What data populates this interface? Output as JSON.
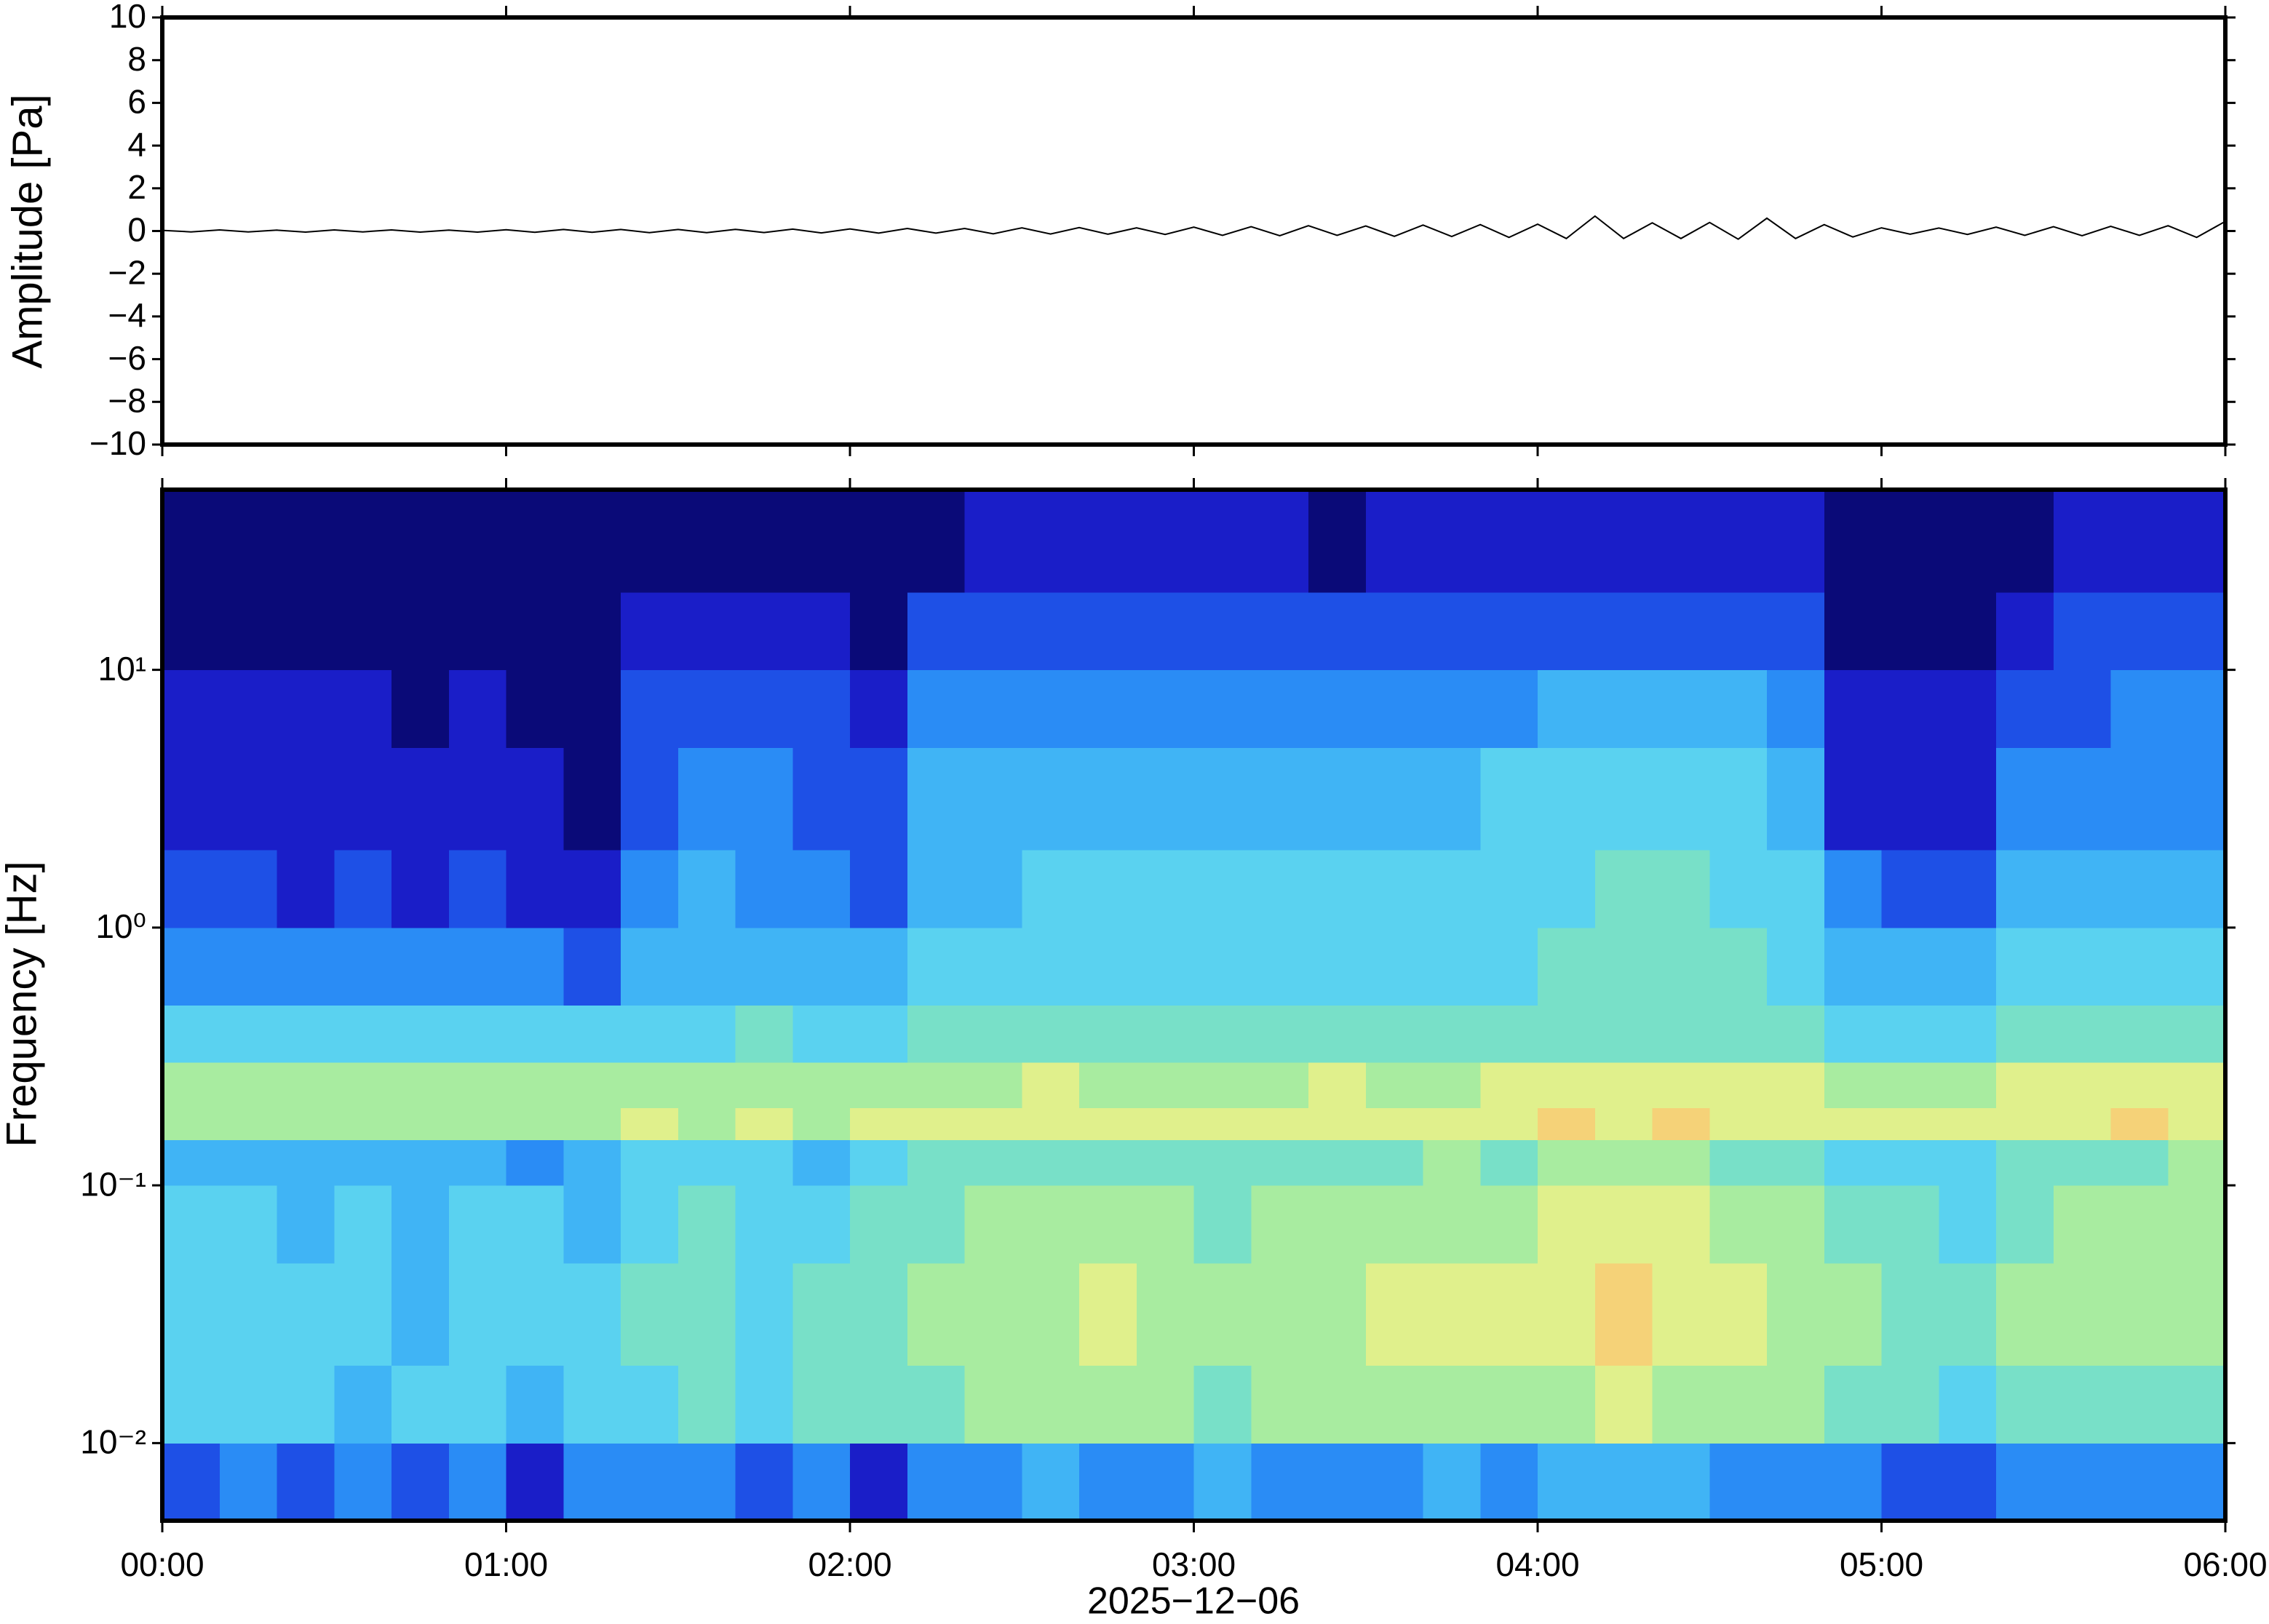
{
  "chart_data": [
    {
      "type": "line",
      "ylabel": "Amplitude [Pa]",
      "color": "#000000",
      "x": [
        0,
        5,
        10,
        15,
        20,
        25,
        30,
        35,
        40,
        45,
        50,
        55,
        60,
        65,
        70,
        75,
        80,
        85,
        90,
        95,
        100,
        105,
        110,
        115,
        120,
        125,
        130,
        135,
        140,
        145,
        150,
        155,
        160,
        165,
        170,
        175,
        180,
        185,
        190,
        195,
        200,
        205,
        210,
        215,
        220,
        225,
        230,
        235,
        240,
        245,
        250,
        255,
        260,
        265,
        270,
        275,
        280,
        285,
        290,
        295,
        300,
        305,
        310,
        315,
        320,
        325,
        330,
        335,
        340,
        345,
        350,
        355,
        360
      ],
      "values": [
        0.03,
        -0.04,
        0.05,
        -0.04,
        0.04,
        -0.05,
        0.05,
        -0.04,
        0.05,
        -0.05,
        0.04,
        -0.05,
        0.06,
        -0.06,
        0.07,
        -0.06,
        0.07,
        -0.08,
        0.07,
        -0.08,
        0.08,
        -0.07,
        0.09,
        -0.09,
        0.1,
        -0.1,
        0.12,
        -0.1,
        0.12,
        -0.13,
        0.15,
        -0.14,
        0.16,
        -0.15,
        0.15,
        -0.16,
        0.18,
        -0.2,
        0.2,
        -0.22,
        0.25,
        -0.2,
        0.24,
        -0.25,
        0.28,
        -0.26,
        0.3,
        -0.3,
        0.32,
        -0.35,
        0.7,
        -0.35,
        0.38,
        -0.35,
        0.4,
        -0.38,
        0.6,
        -0.35,
        0.3,
        -0.28,
        0.15,
        -0.15,
        0.14,
        -0.16,
        0.18,
        -0.2,
        0.2,
        -0.22,
        0.22,
        -0.2,
        0.25,
        -0.3,
        0.45
      ],
      "xlim": [
        0,
        360
      ],
      "xticks": [
        0,
        60,
        120,
        180,
        240,
        300,
        360
      ],
      "ylim": [
        -10,
        10
      ],
      "yticks": [
        {
          "value": -10,
          "label": "−10"
        },
        {
          "value": -8,
          "label": "−8"
        },
        {
          "value": -6,
          "label": "−6"
        },
        {
          "value": -4,
          "label": "−4"
        },
        {
          "value": -2,
          "label": "−2"
        },
        0,
        2,
        4,
        6,
        8,
        10
      ]
    },
    {
      "type": "heatmap",
      "ylabel": "Frequency [Hz]",
      "xlabel": "2025−12−06",
      "yscale": "log",
      "xlim": [
        0,
        360
      ],
      "xticks": [
        {
          "value": 0,
          "label": "00:00"
        },
        {
          "value": 60,
          "label": "01:00"
        },
        {
          "value": 120,
          "label": "02:00"
        },
        {
          "value": 180,
          "label": "03:00"
        },
        {
          "value": 240,
          "label": "04:00"
        },
        {
          "value": 300,
          "label": "05:00"
        },
        {
          "value": 360,
          "label": "06:00"
        }
      ],
      "ylim": [
        0.005,
        50
      ],
      "yticks": [
        {
          "value": 0.01,
          "label": "10⁻²"
        },
        {
          "value": 0.1,
          "label": "10⁻¹"
        },
        {
          "value": 1,
          "label": "10⁰"
        },
        {
          "value": 10,
          "label": "10¹"
        }
      ],
      "x_edges": [
        0,
        10,
        20,
        30,
        40,
        50,
        60,
        70,
        80,
        90,
        100,
        110,
        120,
        130,
        140,
        150,
        160,
        170,
        180,
        190,
        200,
        210,
        220,
        230,
        240,
        250,
        260,
        270,
        280,
        290,
        300,
        310,
        320,
        330,
        340,
        350,
        360
      ],
      "y_edges": [
        0.005,
        0.01,
        0.02,
        0.05,
        0.1,
        0.15,
        0.2,
        0.3,
        0.5,
        1,
        2,
        5,
        10,
        20,
        50
      ],
      "zlim": [
        0,
        10
      ],
      "colormap": [
        "#0a0a78",
        "#1a1ec8",
        "#1e50e6",
        "#2a8cf5",
        "#40b4f5",
        "#5ad2f0",
        "#78e0c8",
        "#a8eca0",
        "#e0f08c",
        "#f5d278",
        "#f5a050"
      ],
      "z": [
        [
          2,
          3,
          2,
          3,
          2,
          3,
          1,
          3,
          3,
          3,
          2,
          3,
          1,
          3,
          3,
          4,
          3,
          3,
          4,
          3,
          3,
          3,
          4,
          3,
          4,
          4,
          4,
          3,
          3,
          3,
          2,
          2,
          3,
          3,
          3,
          3
        ],
        [
          5,
          5,
          5,
          4,
          5,
          5,
          4,
          5,
          5,
          6,
          5,
          6,
          6,
          6,
          7,
          7,
          7,
          7,
          6,
          7,
          7,
          7,
          7,
          7,
          7,
          8,
          7,
          7,
          7,
          6,
          6,
          5,
          6,
          6,
          6,
          6
        ],
        [
          5,
          5,
          5,
          5,
          4,
          5,
          5,
          5,
          6,
          6,
          5,
          6,
          6,
          7,
          7,
          7,
          8,
          7,
          7,
          7,
          7,
          8,
          8,
          8,
          8,
          9,
          8,
          8,
          7,
          7,
          6,
          6,
          7,
          7,
          7,
          7
        ],
        [
          5,
          5,
          4,
          5,
          4,
          5,
          5,
          4,
          5,
          6,
          5,
          5,
          6,
          6,
          7,
          7,
          7,
          7,
          6,
          7,
          7,
          7,
          7,
          7,
          8,
          8,
          8,
          7,
          7,
          6,
          6,
          5,
          6,
          7,
          7,
          7
        ],
        [
          4,
          4,
          4,
          4,
          4,
          4,
          3,
          4,
          5,
          5,
          5,
          4,
          5,
          6,
          6,
          6,
          6,
          6,
          6,
          6,
          6,
          6,
          7,
          6,
          7,
          7,
          7,
          6,
          6,
          5,
          5,
          5,
          6,
          6,
          6,
          7
        ],
        [
          7,
          7,
          7,
          7,
          7,
          7,
          7,
          7,
          8,
          7,
          8,
          7,
          8,
          8,
          8,
          8,
          8,
          8,
          8,
          8,
          8,
          8,
          8,
          8,
          9,
          8,
          9,
          8,
          8,
          8,
          8,
          8,
          8,
          8,
          9,
          8
        ],
        [
          7,
          7,
          7,
          7,
          7,
          7,
          7,
          7,
          7,
          7,
          7,
          7,
          7,
          7,
          7,
          8,
          7,
          7,
          7,
          7,
          8,
          7,
          7,
          8,
          8,
          8,
          8,
          8,
          8,
          7,
          7,
          7,
          8,
          8,
          8,
          8
        ],
        [
          5,
          5,
          5,
          5,
          5,
          5,
          5,
          5,
          5,
          5,
          6,
          5,
          5,
          6,
          6,
          6,
          6,
          6,
          6,
          6,
          6,
          6,
          6,
          6,
          6,
          6,
          6,
          6,
          6,
          5,
          5,
          5,
          6,
          6,
          6,
          6
        ],
        [
          3,
          3,
          3,
          3,
          3,
          3,
          3,
          2,
          4,
          4,
          4,
          4,
          4,
          5,
          5,
          5,
          5,
          5,
          5,
          5,
          5,
          5,
          5,
          5,
          6,
          6,
          6,
          6,
          5,
          4,
          4,
          4,
          5,
          5,
          5,
          5
        ],
        [
          2,
          2,
          1,
          2,
          1,
          2,
          1,
          1,
          3,
          4,
          3,
          3,
          2,
          4,
          4,
          5,
          5,
          5,
          5,
          5,
          5,
          5,
          5,
          5,
          5,
          6,
          6,
          5,
          5,
          3,
          2,
          2,
          4,
          4,
          4,
          4
        ],
        [
          1,
          1,
          1,
          1,
          1,
          1,
          1,
          0,
          2,
          3,
          3,
          2,
          2,
          4,
          4,
          4,
          4,
          4,
          4,
          4,
          4,
          4,
          4,
          5,
          5,
          5,
          5,
          5,
          4,
          1,
          1,
          1,
          3,
          3,
          3,
          3
        ],
        [
          1,
          1,
          1,
          1,
          0,
          1,
          0,
          0,
          2,
          2,
          2,
          2,
          1,
          3,
          3,
          3,
          3,
          3,
          3,
          3,
          3,
          3,
          3,
          3,
          4,
          4,
          4,
          4,
          3,
          1,
          1,
          1,
          2,
          2,
          3,
          3
        ],
        [
          0,
          0,
          0,
          0,
          0,
          0,
          0,
          0,
          1,
          1,
          1,
          1,
          0,
          2,
          2,
          2,
          2,
          2,
          2,
          2,
          2,
          2,
          2,
          2,
          2,
          2,
          2,
          2,
          2,
          0,
          0,
          0,
          1,
          2,
          2,
          2
        ],
        [
          0,
          0,
          0,
          0,
          0,
          0,
          0,
          0,
          0,
          0,
          0,
          0,
          0,
          0,
          1,
          1,
          1,
          1,
          1,
          1,
          0,
          1,
          1,
          1,
          1,
          1,
          1,
          1,
          1,
          0,
          0,
          0,
          0,
          1,
          1,
          1
        ]
      ]
    }
  ]
}
